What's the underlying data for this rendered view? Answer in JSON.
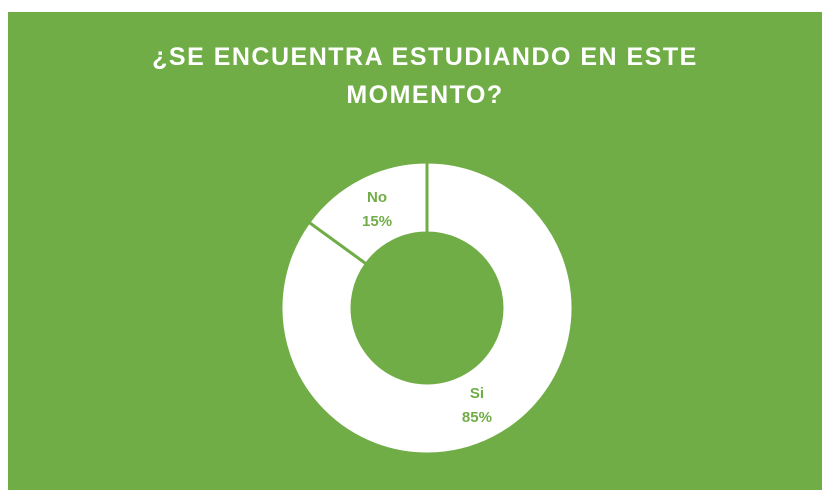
{
  "chart_data": {
    "type": "donut",
    "title": "¿SE ENCUENTRA ESTUDIANDO EN ESTE MOMENTO?",
    "categories": [
      "Si",
      "No"
    ],
    "values": [
      85,
      15
    ],
    "value_labels": [
      "85%",
      "15%"
    ],
    "colors": [
      "#ffffff",
      "#ffffff"
    ],
    "border_color": "#70ad47",
    "background": "#70ad47",
    "label_color": "#70ad47"
  }
}
